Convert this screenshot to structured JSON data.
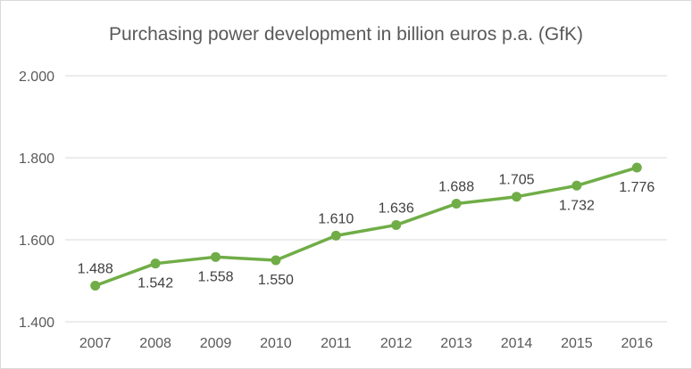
{
  "chart_data": {
    "type": "line",
    "title": "Purchasing power development in billion euros p.a. (GfK)",
    "categories": [
      "2007",
      "2008",
      "2009",
      "2010",
      "2011",
      "2012",
      "2013",
      "2014",
      "2015",
      "2016"
    ],
    "series": [
      {
        "values": [
          1488,
          1542,
          1558,
          1550,
          1610,
          1636,
          1688,
          1705,
          1732,
          1776
        ],
        "labels": [
          "1.488",
          "1.542",
          "1.558",
          "1.550",
          "1.610",
          "1.636",
          "1.688",
          "1.705",
          "1.732",
          "1.776"
        ],
        "label_positions": [
          "above",
          "below",
          "below",
          "below",
          "above",
          "above",
          "above",
          "above",
          "below",
          "below"
        ]
      }
    ],
    "ylim": [
      1400,
      2000
    ],
    "yticks": [
      1400,
      1600,
      1800,
      2000
    ],
    "ytick_labels": [
      "1.400",
      "1.600",
      "1.800",
      "2.000"
    ],
    "grid": true,
    "legend": "none",
    "colors": {
      "line": "#70ad47",
      "grid": "#d9d9d9",
      "text": "#595959"
    }
  }
}
